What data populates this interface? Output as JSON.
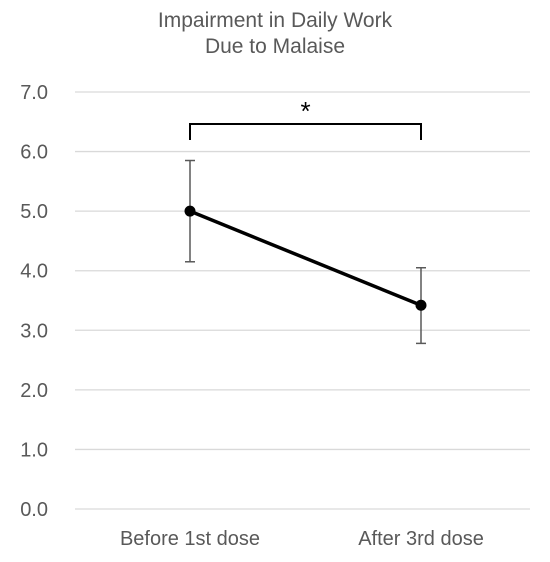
{
  "chart_data": {
    "type": "line",
    "title": [
      "Impairment in Daily Work",
      "Due to Malaise"
    ],
    "xlabel": "",
    "ylabel": "",
    "categories": [
      "Before 1st dose",
      "After 3rd dose"
    ],
    "series": [
      {
        "values": [
          5.0,
          3.42
        ],
        "error_upper": [
          5.85,
          4.05
        ],
        "error_lower": [
          4.15,
          2.78
        ]
      }
    ],
    "ylim": [
      0,
      7
    ],
    "yticks": [
      "0.0",
      "1.0",
      "2.0",
      "3.0",
      "4.0",
      "5.0",
      "6.0",
      "7.0"
    ],
    "grid": true,
    "legend": "none",
    "annotations": [
      {
        "text": "*",
        "type": "significance-bracket",
        "between": [
          "Before 1st dose",
          "After 3rd dose"
        ]
      }
    ],
    "colors": {
      "line": "#000000",
      "grid": "#d9d9d9",
      "error_bar": "#595959",
      "text": "#595959"
    }
  }
}
